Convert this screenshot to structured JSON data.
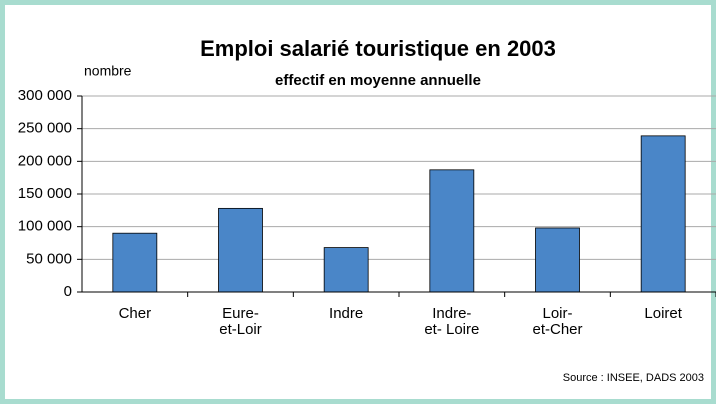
{
  "chart_data": {
    "type": "bar",
    "title": "Emploi salarié touristique en 2003",
    "subtitle": "effectif en moyenne annuelle",
    "y_label": "nombre",
    "source": "Source : INSEE, DADS 2003",
    "categories": [
      "Cher",
      "Eure-\net-Loir",
      "Indre",
      "Indre-\net- Loire",
      "Loir-\net-Cher",
      "Loiret"
    ],
    "values": [
      90000,
      128000,
      68000,
      187000,
      98000,
      239000
    ],
    "color": "#4a86c8",
    "ylim": [
      0,
      300000
    ],
    "yticks": [
      0,
      {
        "value": 50000,
        "label": "50 000"
      },
      {
        "value": 100000,
        "label": "100 000"
      },
      {
        "value": 150000,
        "label": "150 000"
      },
      {
        "value": 200000,
        "label": "200 000"
      },
      {
        "value": 250000,
        "label": "250 000"
      },
      {
        "value": 300000,
        "label": "300 000"
      }
    ],
    "grid": true
  }
}
